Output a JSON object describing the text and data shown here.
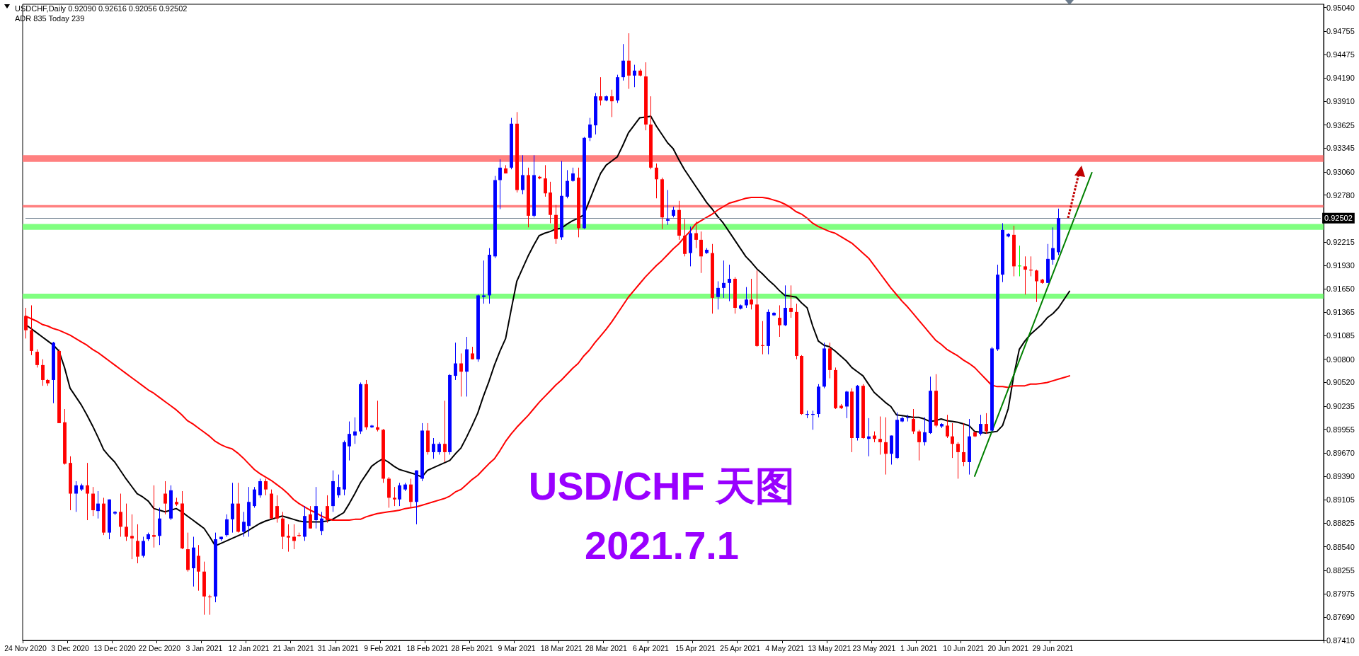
{
  "chart_data": {
    "type": "candlestick",
    "title": "USDCHF,Daily 0.92090 0.92616 0.92056 0.92502",
    "subtitle": "ADR 835 Today 239",
    "annotations": [
      "USD/CHF 天图",
      "2021.7.1"
    ],
    "categories": [
      "24 Nov 2020",
      null,
      null,
      null,
      null,
      null,
      null,
      null,
      "3 Dec 2020",
      null,
      null,
      null,
      null,
      null,
      null,
      null,
      "13 Dec 2020",
      null,
      null,
      null,
      null,
      null,
      null,
      null,
      "22 Dec 2020",
      null,
      null,
      null,
      null,
      null,
      null,
      null,
      "3 Jan 2021",
      null,
      null,
      null,
      null,
      null,
      null,
      null,
      "12 Jan 2021",
      null,
      null,
      null,
      null,
      null,
      null,
      null,
      "21 Jan 2021",
      null,
      null,
      null,
      null,
      null,
      null,
      null,
      "31 Jan 2021",
      null,
      null,
      null,
      null,
      null,
      null,
      null,
      "9 Feb 2021",
      null,
      null,
      null,
      null,
      null,
      null,
      null,
      "18 Feb 2021",
      null,
      null,
      null,
      null,
      null,
      null,
      null,
      "28 Feb 2021",
      null,
      null,
      null,
      null,
      null,
      null,
      null,
      "9 Mar 2021",
      null,
      null,
      null,
      null,
      null,
      null,
      null,
      "18 Mar 2021",
      null,
      null,
      null,
      null,
      null,
      null,
      null,
      "28 Mar 2021",
      null,
      null,
      null,
      null,
      null,
      null,
      null,
      "6 Apr 2021",
      null,
      null,
      null,
      null,
      null,
      null,
      null,
      "15 Apr 2021",
      null,
      null,
      null,
      null,
      null,
      null,
      null,
      "25 Apr 2021",
      null,
      null,
      null,
      null,
      null,
      null,
      null,
      "4 May 2021",
      null,
      null,
      null,
      null,
      null,
      null,
      null,
      "13 May 2021",
      null,
      null,
      null,
      null,
      null,
      null,
      null,
      "23 May 2021",
      null,
      null,
      null,
      null,
      null,
      null,
      null,
      "1 Jun 2021",
      null,
      null,
      null,
      null,
      null,
      null,
      null,
      "10 Jun 2021",
      null,
      null,
      null,
      null,
      null,
      null,
      null,
      "20 Jun 2021",
      null,
      null,
      null,
      null,
      null,
      null,
      null,
      "29 Jun 2021",
      null,
      null,
      null,
      null,
      null,
      null,
      null,
      null,
      null,
      null,
      null,
      null,
      null,
      null,
      null,
      null,
      null,
      null,
      null,
      null,
      null,
      null,
      null,
      null,
      null,
      null,
      null,
      null,
      null,
      null,
      null,
      null,
      null,
      null,
      null,
      null,
      null,
      null,
      null,
      null,
      null,
      null,
      null,
      null,
      null,
      null,
      null,
      null
    ],
    "colors": [
      "#ff0000",
      "#ff0000",
      "#ff0000",
      "#ff0000",
      "#ff0000",
      "#0000ff",
      "#ff0000",
      "#ff0000",
      "#ff0000",
      "#0000ff",
      "#0000ff",
      "#ff0000",
      "#ff0000",
      "#0000ff",
      "#ff0000",
      "#0000ff",
      "#0000ff",
      "#ff0000",
      "#ff0000",
      "#ff0000",
      "#ff0000",
      "#0000ff",
      "#0000ff",
      "#ff0000",
      "#0000ff",
      "#ff0000",
      "#0000ff",
      "#ff0000",
      "#ff0000",
      "#ff0000",
      "#0000ff",
      "#ff0000",
      "#ff0000",
      "#ff0000",
      "#0000ff",
      "#0000ff",
      "#0000ff",
      "#0000ff",
      "#ff0000",
      "#0000ff",
      "#0000ff",
      "#0000ff",
      "#0000ff",
      "#ff0000",
      "#ff0000",
      "#ff0000",
      "#ff0000",
      "#ff0000",
      "#ff0000",
      "#ff0000",
      "#0000ff",
      "#ff0000",
      "#0000ff",
      "#0000ff",
      "#ff0000",
      "#0000ff",
      "#0000ff",
      "#0000ff",
      "#0000ff",
      "#0000ff",
      "#0000ff",
      "#ff0000",
      "#0000ff",
      "#ff0000",
      "#ff0000",
      "#ff0000",
      "#ff0000",
      "#0000ff",
      "#0000ff",
      "#ff0000",
      "#0000ff",
      "#0000ff",
      "#ff0000",
      "#0000ff",
      "#0000ff",
      "#ff0000",
      "#0000ff",
      "#0000ff",
      "#ff0000",
      "#0000ff",
      "#ff0000",
      "#0000ff",
      "#0000ff",
      "#0000ff",
      "#0000ff",
      "#0000ff",
      "#ff0000",
      "#0000ff",
      "#ff0000",
      "#0000ff",
      "#ff0000",
      "#0000ff",
      "#ff0000",
      "#ff0000",
      "#ff0000",
      "#ff0000",
      "#0000ff",
      "#0000ff",
      "#0000ff",
      "#ff0000",
      "#0000ff",
      "#0000ff",
      "#0000ff",
      "#ff0000",
      "#0000ff",
      "#ff0000",
      "#0000ff",
      "#0000ff",
      "#ff0000",
      "#0000ff",
      "#ff0000",
      "#ff0000",
      "#ff0000",
      "#ff0000",
      "#ff0000",
      "#0000ff",
      "#0000ff",
      "#ff0000",
      "#ff0000",
      "#0000ff",
      "#ff0000",
      "#ff0000",
      "#0000ff",
      "#ff0000",
      "#0000ff",
      "#0000ff",
      "#0000ff",
      "#ff0000",
      "#0000ff",
      "#0000ff",
      "#ff0000",
      "#ff0000",
      "#ff0000",
      "#0000ff",
      "#0000ff",
      "#ff0000",
      "#0000ff",
      "#ff0000",
      "#ff0000",
      "#ff0000",
      "#0000ff",
      "#0000ff",
      "#0000ff",
      "#0000ff",
      "#ff0000",
      "#ff0000",
      "#ff0000",
      "#0000ff",
      "#ff0000",
      "#0000ff",
      "#ff0000",
      "#0000ff",
      "#ff0000",
      "#ff0000",
      "#ff0000",
      "#0000ff",
      "#0000ff",
      "#0000ff",
      "#0000ff",
      "#ff0000",
      "#ff0000",
      "#0000ff",
      "#0000ff",
      "#ff0000",
      "#0000ff",
      "#ff0000",
      "#ff0000",
      "#ff0000",
      "#ff0000",
      "#0000ff",
      "#ff0000",
      "#0000ff",
      "#ff0000",
      "#0000ff",
      "#0000ff",
      "#0000ff",
      "#0000ff",
      "#ff0000",
      "#00ff00",
      "#ff0000",
      "#ff0000",
      "#ff0000",
      "#ff0000",
      "#0000ff",
      "#0000ff",
      "#0000ff",
      null,
      null,
      null,
      null,
      null,
      null,
      null,
      null,
      null,
      null,
      null,
      null,
      null,
      null,
      null,
      null,
      null,
      null,
      null,
      null,
      null,
      null,
      null,
      null,
      null,
      null,
      null,
      null,
      null,
      null,
      null,
      null,
      null,
      null,
      null,
      null,
      null,
      null,
      null,
      null,
      null,
      null,
      null,
      null,
      null,
      null,
      null
    ],
    "ohlc": [
      [
        0.9132,
        0.9142,
        0.9105,
        0.9115
      ],
      [
        0.9115,
        0.9145,
        0.9085,
        0.909
      ],
      [
        0.9089,
        0.9092,
        0.907,
        0.9073
      ],
      [
        0.9073,
        0.908,
        0.9048,
        0.9055
      ],
      [
        0.9055,
        0.9056,
        0.9048,
        0.9051
      ],
      [
        0.9055,
        0.9101,
        0.9027,
        0.91
      ],
      [
        0.909,
        0.9092,
        0.9003,
        0.9003
      ],
      [
        0.9004,
        0.902,
        0.8953,
        0.8954
      ],
      [
        0.8955,
        0.8963,
        0.8898,
        0.8918
      ],
      [
        0.8918,
        0.8933,
        0.8896,
        0.8928
      ],
      [
        0.8923,
        0.893,
        0.8921,
        0.8928
      ],
      [
        0.8928,
        0.8955,
        0.8886,
        0.8918
      ],
      [
        0.8918,
        0.8926,
        0.8891,
        0.8898
      ],
      [
        0.8897,
        0.8921,
        0.8888,
        0.8906
      ],
      [
        0.8906,
        0.8913,
        0.8868,
        0.8871
      ],
      [
        0.8871,
        0.8911,
        0.8863,
        0.8911
      ],
      [
        0.8894,
        0.8897,
        0.8892,
        0.8896
      ],
      [
        0.8896,
        0.8918,
        0.8866,
        0.8878
      ],
      [
        0.8878,
        0.8906,
        0.8861,
        0.8866
      ],
      [
        0.8867,
        0.8893,
        0.8839,
        0.8864
      ],
      [
        0.8861,
        0.8881,
        0.8834,
        0.8842
      ],
      [
        0.8843,
        0.8866,
        0.8841,
        0.8861
      ],
      [
        0.8863,
        0.8871,
        0.8861,
        0.8869
      ],
      [
        0.8868,
        0.8928,
        0.8853,
        0.8866
      ],
      [
        0.8867,
        0.8901,
        0.8856,
        0.8888
      ],
      [
        0.8918,
        0.8933,
        0.8893,
        0.8906
      ],
      [
        0.8888,
        0.8928,
        0.8886,
        0.8922
      ],
      [
        0.8908,
        0.8913,
        0.8903,
        0.8905
      ],
      [
        0.8906,
        0.8921,
        0.8851,
        0.8852
      ],
      [
        0.8851,
        0.8871,
        0.8824,
        0.8826
      ],
      [
        0.8828,
        0.8866,
        0.8806,
        0.8853
      ],
      [
        0.8843,
        0.8856,
        0.8801,
        0.8824
      ],
      [
        0.8824,
        0.8836,
        0.8772,
        0.8794
      ],
      [
        0.8794,
        0.8796,
        0.8772,
        0.8793
      ],
      [
        0.8794,
        0.8871,
        0.8787,
        0.8863
      ],
      [
        0.8863,
        0.8866,
        0.8861,
        0.8866
      ],
      [
        0.8868,
        0.8893,
        0.8866,
        0.8887
      ],
      [
        0.8887,
        0.8931,
        0.8871,
        0.8906
      ],
      [
        0.8906,
        0.8931,
        0.8871,
        0.8872
      ],
      [
        0.8872,
        0.8896,
        0.8866,
        0.8884
      ],
      [
        0.8879,
        0.8926,
        0.8866,
        0.8908
      ],
      [
        0.8903,
        0.8926,
        0.8901,
        0.8923
      ],
      [
        0.8916,
        0.8936,
        0.8913,
        0.8933
      ],
      [
        0.8933,
        0.8936,
        0.8916,
        0.8923
      ],
      [
        0.8918,
        0.8923,
        0.8888,
        0.8888
      ],
      [
        0.8903,
        0.8916,
        0.8883,
        0.8888
      ],
      [
        0.8888,
        0.8896,
        0.8851,
        0.8866
      ],
      [
        0.8867,
        0.8881,
        0.8848,
        0.8865
      ],
      [
        0.8866,
        0.8881,
        0.8851,
        0.8861
      ],
      [
        0.8868,
        0.8871,
        0.8866,
        0.8867
      ],
      [
        0.8866,
        0.8903,
        0.8861,
        0.8891
      ],
      [
        0.8893,
        0.8903,
        0.8876,
        0.8876
      ],
      [
        0.8886,
        0.8926,
        0.8876,
        0.8903
      ],
      [
        0.8873,
        0.8896,
        0.8868,
        0.8888
      ],
      [
        0.8903,
        0.8916,
        0.8883,
        0.8886
      ],
      [
        0.8903,
        0.8946,
        0.8896,
        0.8933
      ],
      [
        0.8916,
        0.8941,
        0.8913,
        0.8926
      ],
      [
        0.8923,
        0.8982,
        0.8916,
        0.898
      ],
      [
        0.8975,
        0.9005,
        0.8958,
        0.899
      ],
      [
        0.8988,
        0.901,
        0.8978,
        0.8993
      ],
      [
        0.8993,
        0.9052,
        0.899,
        0.905
      ],
      [
        0.905,
        0.9055,
        0.8995,
        0.8998
      ],
      [
        0.8998,
        0.9001,
        0.8997,
        0.9
      ],
      [
        0.8998,
        0.903,
        0.8993,
        0.8995
      ],
      [
        0.8995,
        0.8996,
        0.8931,
        0.8936
      ],
      [
        0.8936,
        0.8938,
        0.8901,
        0.8913
      ],
      [
        0.8913,
        0.8926,
        0.8903,
        0.8911
      ],
      [
        0.8911,
        0.8931,
        0.8903,
        0.8928
      ],
      [
        0.8923,
        0.8931,
        0.8921,
        0.8929
      ],
      [
        0.8929,
        0.8936,
        0.8901,
        0.8908
      ],
      [
        0.8908,
        0.8946,
        0.8881,
        0.8946
      ],
      [
        0.8936,
        0.9003,
        0.8933,
        0.8994
      ],
      [
        0.8994,
        0.9003,
        0.8965,
        0.8968
      ],
      [
        0.8968,
        0.8985,
        0.896,
        0.8978
      ],
      [
        0.8968,
        0.898,
        0.8965,
        0.8978
      ],
      [
        0.8978,
        0.903,
        0.8956,
        0.8968
      ],
      [
        0.8968,
        0.9062,
        0.8965,
        0.9061
      ],
      [
        0.906,
        0.91,
        0.9055,
        0.9075
      ],
      [
        0.9075,
        0.9087,
        0.9035,
        0.9065
      ],
      [
        0.9065,
        0.9107,
        0.9035,
        0.9092
      ],
      [
        0.9087,
        0.9095,
        0.908,
        0.908
      ],
      [
        0.908,
        0.9158,
        0.9077,
        0.9157
      ],
      [
        0.9155,
        0.9199,
        0.9147,
        0.9157
      ],
      [
        0.9157,
        0.9214,
        0.9147,
        0.9206
      ],
      [
        0.9204,
        0.9301,
        0.9202,
        0.9296
      ],
      [
        0.9296,
        0.9321,
        0.9261,
        0.9311
      ],
      [
        0.931,
        0.9314,
        0.9304,
        0.9304
      ],
      [
        0.9311,
        0.9371,
        0.9309,
        0.9364
      ],
      [
        0.9364,
        0.9378,
        0.9281,
        0.9284
      ],
      [
        0.9284,
        0.9326,
        0.9279,
        0.9302
      ],
      [
        0.9302,
        0.9311,
        0.9239,
        0.9253
      ],
      [
        0.9253,
        0.9326,
        0.9251,
        0.9302
      ],
      [
        0.93,
        0.9301,
        0.9297,
        0.9298
      ],
      [
        0.9298,
        0.9314,
        0.9276,
        0.928
      ],
      [
        0.9281,
        0.9294,
        0.9244,
        0.9254
      ],
      [
        0.9254,
        0.9266,
        0.9219,
        0.9225
      ],
      [
        0.9227,
        0.9319,
        0.9224,
        0.9277
      ],
      [
        0.9276,
        0.9308,
        0.9274,
        0.9295
      ],
      [
        0.9295,
        0.9311,
        0.9294,
        0.9304
      ],
      [
        0.9299,
        0.9311,
        0.9227,
        0.9238
      ],
      [
        0.9238,
        0.9348,
        0.9237,
        0.9347
      ],
      [
        0.9347,
        0.9371,
        0.9343,
        0.9363
      ],
      [
        0.9362,
        0.9401,
        0.9351,
        0.9397
      ],
      [
        0.9397,
        0.942,
        0.9386,
        0.9392
      ],
      [
        0.9392,
        0.9398,
        0.9391,
        0.9397
      ],
      [
        0.9397,
        0.9405,
        0.9372,
        0.9391
      ],
      [
        0.9392,
        0.9423,
        0.9389,
        0.942
      ],
      [
        0.942,
        0.946,
        0.9416,
        0.944
      ],
      [
        0.944,
        0.9473,
        0.9406,
        0.9422
      ],
      [
        0.9422,
        0.9435,
        0.9408,
        0.9428
      ],
      [
        0.9428,
        0.943,
        0.9421,
        0.9422
      ],
      [
        0.9421,
        0.9438,
        0.9356,
        0.9363
      ],
      [
        0.9363,
        0.9397,
        0.9309,
        0.9311
      ],
      [
        0.9311,
        0.9316,
        0.9274,
        0.9297
      ],
      [
        0.9297,
        0.9299,
        0.9237,
        0.9251
      ],
      [
        0.9247,
        0.9284,
        0.9242,
        0.9249
      ],
      [
        0.9253,
        0.9264,
        0.9251,
        0.926
      ],
      [
        0.926,
        0.9271,
        0.9224,
        0.9229
      ],
      [
        0.9229,
        0.9249,
        0.9204,
        0.9207
      ],
      [
        0.9208,
        0.924,
        0.9192,
        0.9232
      ],
      [
        0.9232,
        0.9246,
        0.9214,
        0.9224
      ],
      [
        0.9224,
        0.9234,
        0.9184,
        0.9204
      ],
      [
        0.9208,
        0.9214,
        0.9207,
        0.9212
      ],
      [
        0.9208,
        0.9219,
        0.9135,
        0.9154
      ],
      [
        0.9155,
        0.9174,
        0.914,
        0.9166
      ],
      [
        0.9166,
        0.9199,
        0.9154,
        0.9172
      ],
      [
        0.9172,
        0.9194,
        0.915,
        0.9177
      ],
      [
        0.9177,
        0.9179,
        0.9135,
        0.9142
      ],
      [
        0.9141,
        0.9146,
        0.914,
        0.9145
      ],
      [
        0.9145,
        0.9167,
        0.9142,
        0.9152
      ],
      [
        0.9152,
        0.9177,
        0.914,
        0.9146
      ],
      [
        0.9146,
        0.9187,
        0.9095,
        0.9096
      ],
      [
        0.9097,
        0.9126,
        0.9086,
        0.9096
      ],
      [
        0.9096,
        0.914,
        0.9086,
        0.9137
      ],
      [
        0.9133,
        0.9137,
        0.9132,
        0.9136
      ],
      [
        0.913,
        0.9145,
        0.9107,
        0.9121
      ],
      [
        0.9121,
        0.9169,
        0.912,
        0.9142
      ],
      [
        0.9142,
        0.9169,
        0.913,
        0.9137
      ],
      [
        0.9137,
        0.9147,
        0.908,
        0.9084
      ],
      [
        0.9084,
        0.9085,
        0.9013,
        0.9014
      ],
      [
        0.9013,
        0.9018,
        0.9009,
        0.9014
      ],
      [
        0.9013,
        0.9018,
        0.8995,
        0.9014
      ],
      [
        0.9014,
        0.905,
        0.901,
        0.9047
      ],
      [
        0.9047,
        0.91,
        0.9045,
        0.9093
      ],
      [
        0.9093,
        0.91,
        0.9057,
        0.9067
      ],
      [
        0.9067,
        0.907,
        0.902,
        0.9021
      ],
      [
        0.9024,
        0.9026,
        0.902,
        0.9021
      ],
      [
        0.9023,
        0.9042,
        0.9009,
        0.9041
      ],
      [
        0.9041,
        0.9045,
        0.8968,
        0.8985
      ],
      [
        0.8985,
        0.9049,
        0.8982,
        0.9048
      ],
      [
        0.9048,
        0.905,
        0.8984,
        0.8985
      ],
      [
        0.8984,
        0.9009,
        0.8963,
        0.8987
      ],
      [
        0.8988,
        0.8993,
        0.898,
        0.8984
      ],
      [
        0.8984,
        0.9011,
        0.8965,
        0.898
      ],
      [
        0.898,
        0.901,
        0.8941,
        0.8966
      ],
      [
        0.8966,
        0.8988,
        0.8953,
        0.8988
      ],
      [
        0.8961,
        0.9016,
        0.896,
        0.9007
      ],
      [
        0.9005,
        0.9011,
        0.9004,
        0.9009
      ],
      [
        0.9009,
        0.9013,
        0.9005,
        0.901
      ],
      [
        0.9008,
        0.902,
        0.899,
        0.8993
      ],
      [
        0.8993,
        0.8995,
        0.8958,
        0.898
      ],
      [
        0.898,
        0.901,
        0.8976,
        0.8992
      ],
      [
        0.8991,
        0.9059,
        0.899,
        0.9042
      ],
      [
        0.9042,
        0.9062,
        0.8998,
        0.9
      ],
      [
        0.8999,
        0.9003,
        0.8997,
        0.9002
      ],
      [
        0.9,
        0.9013,
        0.8985,
        0.8987
      ],
      [
        0.8987,
        0.9003,
        0.8961,
        0.8978
      ],
      [
        0.8978,
        0.898,
        0.8936,
        0.8968
      ],
      [
        0.8968,
        0.9003,
        0.8951,
        0.8956
      ],
      [
        0.8956,
        0.9008,
        0.8941,
        0.8987
      ],
      [
        0.8992,
        0.8993,
        0.8986,
        0.8987
      ],
      [
        0.899,
        0.9013,
        0.8988,
        0.9002
      ],
      [
        0.9002,
        0.9015,
        0.899,
        0.8993
      ],
      [
        0.8994,
        0.9095,
        0.8993,
        0.9093
      ],
      [
        0.9092,
        0.9194,
        0.909,
        0.9182
      ],
      [
        0.9182,
        0.9244,
        0.9173,
        0.9236
      ],
      [
        0.9228,
        0.9232,
        0.9227,
        0.9231
      ],
      [
        0.923,
        0.9241,
        0.918,
        0.9192
      ],
      [
        0.9192,
        0.9217,
        0.918,
        0.9193
      ],
      [
        0.9192,
        0.9204,
        0.9158,
        0.9188
      ],
      [
        0.9188,
        0.9204,
        0.918,
        0.9187
      ],
      [
        0.9187,
        0.9188,
        0.9149,
        0.9174
      ],
      [
        0.9176,
        0.9177,
        0.9171,
        0.9172
      ],
      [
        0.9172,
        0.9219,
        0.9172,
        0.9201
      ],
      [
        0.92,
        0.9239,
        0.9194,
        0.9214
      ],
      [
        0.9209,
        0.92616,
        0.92056,
        0.92502
      ],
      null,
      null,
      null,
      null,
      null,
      null,
      null,
      null,
      null,
      null,
      null,
      null,
      null,
      null,
      null,
      null,
      null,
      null,
      null,
      null,
      null,
      null,
      null,
      null,
      null,
      null,
      null,
      null,
      null,
      null,
      null,
      null,
      null,
      null,
      null,
      null,
      null,
      null,
      null,
      null,
      null,
      null,
      null,
      null,
      null,
      null,
      null
    ],
    "series": [
      {
        "type": "line",
        "color": "#000000",
        "values": [
          0.9122,
          0.9117,
          0.9112,
          0.9107,
          0.9102,
          0.9097,
          0.909,
          0.907,
          0.9045,
          0.9035,
          0.9025,
          0.9013,
          0.9,
          0.8986,
          0.8971,
          0.8963,
          0.8956,
          0.8946,
          0.8936,
          0.8927,
          0.8918,
          0.8914,
          0.8909,
          0.89,
          0.8898,
          0.8896,
          0.8898,
          0.89,
          0.8896,
          0.8891,
          0.8886,
          0.8881,
          0.8876,
          0.8866,
          0.8855,
          0.8858,
          0.8861,
          0.8864,
          0.8867,
          0.887,
          0.8874,
          0.8878,
          0.8882,
          0.8885,
          0.8887,
          0.8889,
          0.8891,
          0.8889,
          0.8887,
          0.8885,
          0.8884,
          0.8884,
          0.8884,
          0.8884,
          0.8885,
          0.8887,
          0.8891,
          0.8895,
          0.8906,
          0.8918,
          0.8931,
          0.8941,
          0.8951,
          0.8956,
          0.896,
          0.8956,
          0.8951,
          0.8947,
          0.8945,
          0.8943,
          0.8941,
          0.8938,
          0.8946,
          0.8949,
          0.8952,
          0.8955,
          0.8958,
          0.8966,
          0.8973,
          0.8986,
          0.9,
          0.9015,
          0.9035,
          0.9053,
          0.9073,
          0.909,
          0.9105,
          0.914,
          0.9174,
          0.9189,
          0.9204,
          0.9217,
          0.9229,
          0.9232,
          0.9234,
          0.9237,
          0.9238,
          0.9243,
          0.9247,
          0.925,
          0.9254,
          0.9271,
          0.9288,
          0.9304,
          0.9314,
          0.9319,
          0.9324,
          0.9338,
          0.9353,
          0.9362,
          0.9371,
          0.9372,
          0.9373,
          0.9361,
          0.9351,
          0.9341,
          0.9334,
          0.9321,
          0.9309,
          0.9299,
          0.9289,
          0.9279,
          0.9269,
          0.9261,
          0.9252,
          0.9244,
          0.9234,
          0.9224,
          0.9214,
          0.9204,
          0.9197,
          0.9189,
          0.9183,
          0.9176,
          0.917,
          0.9163,
          0.9157,
          0.9156,
          0.9155,
          0.9148,
          0.9142,
          0.912,
          0.9102,
          0.9097,
          0.9095,
          0.909,
          0.9084,
          0.9078,
          0.907,
          0.9065,
          0.906,
          0.905,
          0.904,
          0.9034,
          0.9028,
          0.9023,
          0.9013,
          0.9012,
          0.9011,
          0.901,
          0.901,
          0.9008,
          0.9005,
          0.9006,
          0.9008,
          0.9006,
          0.9005,
          0.9004,
          0.9002,
          0.9,
          0.8993,
          0.8992,
          0.8991,
          0.8992,
          0.8993,
          0.9,
          0.902,
          0.906,
          0.9092,
          0.9102,
          0.911,
          0.9116,
          0.9122,
          0.913,
          0.9135,
          0.9142,
          0.9152,
          0.9162,
          null,
          null,
          null,
          null,
          null,
          null,
          null,
          null,
          null,
          null,
          null,
          null,
          null,
          null,
          null,
          null,
          null,
          null,
          null,
          null,
          null,
          null,
          null,
          null,
          null,
          null,
          null,
          null,
          null,
          null,
          null,
          null,
          null,
          null,
          null,
          null,
          null,
          null,
          null,
          null,
          null,
          null,
          null,
          null,
          null
        ]
      },
      {
        "type": "line",
        "color": "#ff0000",
        "values": [
          0.9132,
          0.9129,
          0.9126,
          0.9122,
          0.912,
          0.9117,
          0.9115,
          0.9112,
          0.9109,
          0.9105,
          0.9101,
          0.9097,
          0.9092,
          0.9088,
          0.9083,
          0.9078,
          0.9073,
          0.9068,
          0.9063,
          0.9058,
          0.9053,
          0.9048,
          0.9043,
          0.9039,
          0.9034,
          0.9029,
          0.9024,
          0.9019,
          0.9013,
          0.9006,
          0.9002,
          0.8997,
          0.8992,
          0.8987,
          0.8981,
          0.8977,
          0.8974,
          0.8972,
          0.8967,
          0.8961,
          0.8954,
          0.8947,
          0.8942,
          0.8938,
          0.8934,
          0.8929,
          0.8924,
          0.8918,
          0.8911,
          0.8906,
          0.8902,
          0.8898,
          0.8895,
          0.8891,
          0.8888,
          0.8886,
          0.8886,
          0.8886,
          0.8886,
          0.8887,
          0.8887,
          0.889,
          0.8892,
          0.8894,
          0.8895,
          0.8896,
          0.8897,
          0.8898,
          0.89,
          0.8901,
          0.8902,
          0.8904,
          0.8906,
          0.8908,
          0.891,
          0.8912,
          0.8915,
          0.892,
          0.8923,
          0.8929,
          0.8935,
          0.894,
          0.8947,
          0.8954,
          0.896,
          0.897,
          0.8981,
          0.899,
          0.8998,
          0.9005,
          0.9012,
          0.902,
          0.9028,
          0.9035,
          0.9042,
          0.9049,
          0.9055,
          0.9062,
          0.9069,
          0.9075,
          0.9084,
          0.9091,
          0.91,
          0.9108,
          0.9116,
          0.9125,
          0.9135,
          0.9145,
          0.9155,
          0.9163,
          0.9171,
          0.9179,
          0.9186,
          0.9193,
          0.9199,
          0.9206,
          0.9213,
          0.9219,
          0.9227,
          0.9234,
          0.9243,
          0.9247,
          0.9251,
          0.9255,
          0.926,
          0.9264,
          0.9268,
          0.927,
          0.9272,
          0.9274,
          0.9275,
          0.9275,
          0.9275,
          0.9274,
          0.9272,
          0.927,
          0.9267,
          0.9263,
          0.9258,
          0.9255,
          0.925,
          0.9244,
          0.924,
          0.9237,
          0.9234,
          0.9232,
          0.9228,
          0.9224,
          0.922,
          0.9214,
          0.9208,
          0.9202,
          0.9193,
          0.9184,
          0.9175,
          0.9166,
          0.9158,
          0.915,
          0.9143,
          0.9135,
          0.9127,
          0.9119,
          0.9111,
          0.9103,
          0.9098,
          0.9092,
          0.9088,
          0.9084,
          0.9079,
          0.9075,
          0.907,
          0.9063,
          0.9056,
          0.9049,
          0.9047,
          0.9047,
          0.9046,
          0.9048,
          0.9048,
          0.9048,
          0.905,
          0.905,
          0.9051,
          0.9052,
          0.9054,
          0.9056,
          0.9058,
          0.906,
          null,
          null,
          null,
          null,
          null,
          null,
          null,
          null,
          null,
          null,
          null,
          null,
          null,
          null,
          null,
          null,
          null,
          null,
          null,
          null,
          null,
          null,
          null,
          null,
          null,
          null,
          null,
          null,
          null,
          null,
          null,
          null,
          null,
          null,
          null,
          null,
          null,
          null,
          null,
          null,
          null,
          null,
          null,
          null,
          null
        ]
      },
      {
        "type": "line",
        "color": "#008000",
        "values": [
          null,
          null,
          null,
          null,
          null,
          null,
          null,
          null,
          null,
          null,
          null,
          null,
          null,
          null,
          null,
          null,
          null,
          null,
          null,
          null,
          null,
          null,
          null,
          null,
          null,
          null,
          null,
          null,
          null,
          null,
          null,
          null,
          null,
          null,
          null,
          null,
          null,
          null,
          null,
          null,
          null,
          null,
          null,
          null,
          null,
          null,
          null,
          null,
          null,
          null,
          null,
          null,
          null,
          null,
          null,
          null,
          null,
          null,
          null,
          null,
          null,
          null,
          null,
          null,
          null,
          null,
          null,
          null,
          null,
          null,
          null,
          null,
          null,
          null,
          null,
          null,
          null,
          null,
          null,
          null,
          null,
          null,
          null,
          null,
          null,
          null,
          null,
          null,
          null,
          null,
          null,
          null,
          null,
          null,
          null,
          null,
          null,
          null,
          null,
          null,
          null,
          null,
          null,
          null,
          null,
          null,
          null,
          null,
          null,
          null,
          null,
          null,
          null,
          null,
          null,
          null,
          null,
          null,
          null,
          null,
          null,
          null,
          null,
          null,
          null,
          null,
          null,
          null,
          null,
          null,
          null,
          null,
          null,
          null,
          null,
          null,
          null,
          null,
          null,
          null,
          null,
          null,
          null,
          null,
          null,
          null,
          null,
          null,
          null,
          null,
          null,
          null,
          null,
          null,
          null,
          null,
          null,
          null,
          null,
          null,
          null,
          null,
          null,
          null,
          null,
          null,
          null,
          null,
          null,
          null,
          0.8939,
          null,
          null,
          null,
          null,
          null,
          null,
          null,
          null,
          null,
          null,
          null,
          null,
          null,
          null,
          null,
          null,
          null,
          null,
          null,
          null,
          0.9305,
          null,
          null,
          null,
          null,
          null,
          null,
          null,
          null,
          null,
          null,
          null,
          null,
          null,
          null,
          null,
          null,
          null,
          null,
          null,
          null,
          null,
          null,
          null,
          null,
          null,
          null,
          null,
          null,
          null,
          null,
          null,
          null,
          null,
          null,
          null,
          null,
          null,
          null,
          null,
          null,
          null
        ]
      }
    ],
    "bands": [
      {
        "axis": "y",
        "from": 0.9318,
        "to": 0.9326,
        "color": "#ff8080"
      },
      {
        "axis": "y",
        "from": 0.9263,
        "to": 0.9266,
        "color": "#ff8080"
      },
      {
        "axis": "y",
        "from": 0.9236,
        "to": 0.9243,
        "color": "#80ff80"
      },
      {
        "axis": "y",
        "from": 0.9153,
        "to": 0.9159,
        "color": "#80ff80"
      }
    ],
    "ref_lines": [
      {
        "axis": "y",
        "value": 0.92502,
        "label": "0.92502",
        "color": "#708090"
      }
    ],
    "ylim": [
      0.8741,
      0.9508
    ],
    "yticks": [
      {
        "value": 0.9504,
        "label": "0.95040"
      },
      {
        "value": 0.94755,
        "label": "0.94755"
      },
      {
        "value": 0.94475,
        "label": "0.94475"
      },
      {
        "value": 0.9419,
        "label": "0.94190"
      },
      {
        "value": 0.9391,
        "label": "0.93910"
      },
      {
        "value": 0.93625,
        "label": "0.93625"
      },
      {
        "value": 0.93345,
        "label": "0.93345"
      },
      {
        "value": 0.9306,
        "label": "0.93060"
      },
      {
        "value": 0.9278,
        "label": "0.92780"
      },
      {
        "value": 0.92215,
        "label": "0.92215"
      },
      {
        "value": 0.9193,
        "label": "0.91930"
      },
      {
        "value": 0.9165,
        "label": "0.91650"
      },
      {
        "value": 0.91365,
        "label": "0.91365"
      },
      {
        "value": 0.91085,
        "label": "0.91085"
      },
      {
        "value": 0.908,
        "label": "0.90800"
      },
      {
        "value": 0.9052,
        "label": "0.90520"
      },
      {
        "value": 0.90235,
        "label": "0.90235"
      },
      {
        "value": 0.89955,
        "label": "0.89955"
      },
      {
        "value": 0.8967,
        "label": "0.89670"
      },
      {
        "value": 0.8939,
        "label": "0.89390"
      },
      {
        "value": 0.89105,
        "label": "0.89105"
      },
      {
        "value": 0.88825,
        "label": "0.88825"
      },
      {
        "value": 0.8854,
        "label": "0.88540"
      },
      {
        "value": 0.88255,
        "label": "0.88255"
      },
      {
        "value": 0.87975,
        "label": "0.87975"
      },
      {
        "value": 0.8769,
        "label": "0.87690"
      },
      {
        "value": 0.8741,
        "label": "0.87410"
      }
    ],
    "marker": "none"
  }
}
